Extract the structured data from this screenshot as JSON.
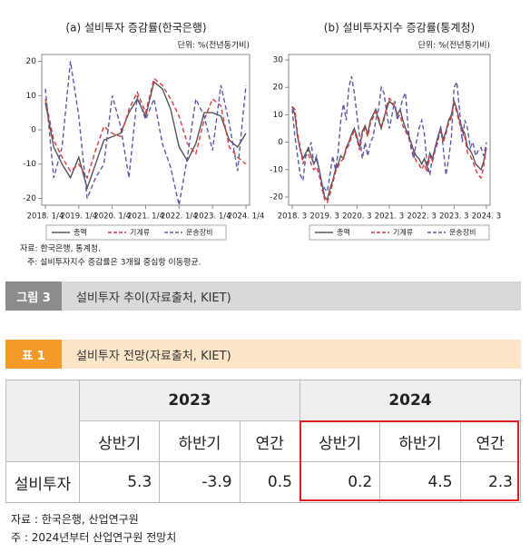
{
  "chart_data": [
    {
      "type": "line",
      "title": "(a) 설비투자 증감률(한국은행)",
      "unit": "단위: %(전년동기비)",
      "categories": [
        "2018. 1/4",
        null,
        null,
        null,
        "2019. 1/4",
        null,
        null,
        null,
        "2020. 1/4",
        null,
        null,
        null,
        "2021. 1/4",
        null,
        null,
        null,
        "2022. 1/4",
        null,
        null,
        null,
        "2023. 1/4",
        null,
        null,
        null,
        "2024. 1/4"
      ],
      "ylim": [
        -22,
        22
      ],
      "yticks": [
        -20,
        -10,
        0,
        10,
        20
      ],
      "series": [
        {
          "name": "총액",
          "color": "#555555",
          "style": "solid",
          "values": [
            8,
            -5,
            -10,
            -14,
            -8,
            -17,
            -10,
            -3,
            -2,
            -1,
            5,
            9,
            4,
            14,
            12,
            6,
            -5,
            -9,
            -4,
            5,
            5,
            4,
            -3,
            -5,
            -1
          ]
        },
        {
          "name": "기계류",
          "color": "#e03a3a",
          "style": "dashed",
          "values": [
            9,
            -3,
            -8,
            -12,
            -10,
            -14,
            -6,
            1,
            -1,
            -2,
            6,
            11,
            5,
            15,
            13,
            9,
            4,
            -4,
            -7,
            3,
            9,
            7,
            -5,
            -8,
            -10
          ]
        },
        {
          "name": "운송장비",
          "color": "#5a5aa8",
          "style": "dashed",
          "values": [
            12,
            -14,
            -5,
            20,
            4,
            -20,
            -14,
            -10,
            10,
            1,
            -14,
            10,
            3,
            9,
            -4,
            -11,
            -22,
            -8,
            9,
            4,
            -6,
            13,
            2,
            -12,
            13
          ]
        }
      ]
    },
    {
      "type": "line",
      "title": "(b) 설비투자지수 증감률(통계청)",
      "unit": "단위: %(전년동기비)",
      "categories": [
        "2018. 3",
        null,
        null,
        null,
        null,
        null,
        null,
        null,
        null,
        null,
        null,
        null,
        "2019. 3",
        null,
        null,
        null,
        null,
        null,
        null,
        null,
        null,
        null,
        null,
        null,
        "2020. 3",
        null,
        null,
        null,
        null,
        null,
        null,
        null,
        null,
        null,
        null,
        null,
        "2021. 3",
        null,
        null,
        null,
        null,
        null,
        null,
        null,
        null,
        null,
        null,
        null,
        "2022. 3",
        null,
        null,
        null,
        null,
        null,
        null,
        null,
        null,
        null,
        null,
        null,
        "2023. 3",
        null,
        null,
        null,
        null,
        null,
        null,
        null,
        null,
        null,
        null,
        null,
        "2024. 3"
      ],
      "ylim": [
        -23,
        32
      ],
      "yticks": [
        -20,
        -10,
        0,
        10,
        20,
        30
      ],
      "series": [
        {
          "name": "총액",
          "color": "#555555",
          "style": "solid",
          "values": [
            13,
            10,
            2,
            -3,
            -6,
            -4,
            -2,
            -5,
            -8,
            -6,
            -10,
            -15,
            -20,
            -21,
            -17,
            -14,
            -10,
            -8,
            -5,
            -6,
            -2,
            0,
            3,
            5,
            2,
            -2,
            4,
            6,
            3,
            8,
            10,
            12,
            8,
            5,
            9,
            12,
            15,
            14,
            13,
            10,
            12,
            8,
            5,
            3,
            0,
            -3,
            -5,
            -6,
            -8,
            -6,
            -9,
            -4,
            -6,
            -2,
            2,
            5,
            1,
            4,
            8,
            10,
            15,
            12,
            8,
            5,
            3,
            -2,
            -3,
            -5,
            -8,
            -9,
            -10,
            -7,
            -2
          ]
        },
        {
          "name": "기계류",
          "color": "#e03a3a",
          "style": "dashed",
          "values": [
            13,
            12,
            3,
            -2,
            -8,
            -5,
            -4,
            -8,
            -10,
            -9,
            -12,
            -17,
            -21,
            -22,
            -19,
            -15,
            -11,
            -9,
            -7,
            -6,
            -3,
            -1,
            2,
            4,
            1,
            -3,
            3,
            5,
            2,
            7,
            9,
            11,
            9,
            6,
            8,
            13,
            16,
            15,
            13,
            9,
            10,
            6,
            4,
            2,
            -1,
            -4,
            -7,
            -8,
            -10,
            -8,
            -11,
            -5,
            -7,
            -3,
            1,
            4,
            0,
            3,
            7,
            9,
            14,
            11,
            7,
            4,
            2,
            -4,
            -5,
            -7,
            -10,
            -12,
            -13,
            -9,
            -1
          ]
        },
        {
          "name": "운송장비",
          "color": "#5a5aa8",
          "style": "dashed",
          "values": [
            12,
            2,
            -5,
            -12,
            -14,
            -5,
            -3,
            0,
            -8,
            -5,
            -10,
            -15,
            -17,
            -18,
            -12,
            -5,
            -10,
            -4,
            8,
            14,
            8,
            20,
            24,
            18,
            10,
            2,
            -6,
            0,
            -5,
            0,
            2,
            8,
            12,
            20,
            18,
            11,
            5,
            10,
            15,
            8,
            12,
            16,
            18,
            5,
            -2,
            -6,
            0,
            5,
            8,
            3,
            -8,
            -12,
            -5,
            -3,
            0,
            6,
            -2,
            -12,
            -6,
            2,
            20,
            22,
            12,
            0,
            8,
            5,
            -2,
            0,
            -5,
            -3,
            -2,
            -5,
            0
          ]
        }
      ]
    }
  ],
  "figure_notes": [
    "자료: 한국은행, 통계청.",
    "주: 설비투자지수 증감률은 3개월 중심항 이동평균."
  ],
  "figure_caption": {
    "label": "그림 3",
    "text": "설비투자 추이(자료출처, KIET)"
  },
  "table_caption": {
    "label": "표 1",
    "text": "설비투자 전망(자료출처, KIET)"
  },
  "table": {
    "years": [
      "2023",
      "2024"
    ],
    "subheaders": [
      "상반기",
      "하반기",
      "연간",
      "상반기",
      "하반기",
      "연간"
    ],
    "rows": [
      {
        "label": "설비투자",
        "values": [
          5.3,
          -3.9,
          0.5,
          0.2,
          4.5,
          2.3
        ]
      }
    ]
  },
  "table_notes": [
    "자료 : 한국은행, 산업연구원",
    "주 : 2024년부터 산업연구원 전망치"
  ]
}
